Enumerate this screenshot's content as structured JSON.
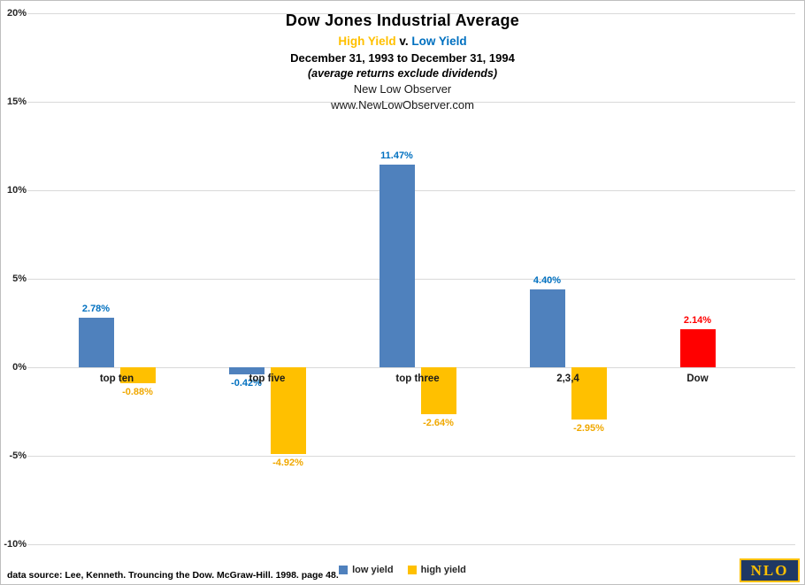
{
  "header": {
    "title": "Dow Jones Industrial Average",
    "subtitle_high": "High Yield",
    "subtitle_vs": " v. ",
    "subtitle_low": "Low Yield",
    "date_range": "December 31, 1993 to December 31, 1994",
    "note": "(average returns exclude dividends)",
    "org": "New Low Observer",
    "url": "www.NewLowObserver.com"
  },
  "chart_data": {
    "type": "bar",
    "title": "Dow Jones Industrial Average — High Yield v. Low Yield",
    "categories": [
      "top ten",
      "top five",
      "top three",
      "2,3,4",
      "Dow"
    ],
    "series": [
      {
        "name": "low yield",
        "color": "#4f81bd",
        "label_color": "#0070c0",
        "in_legend": true,
        "values": [
          2.78,
          -0.42,
          11.47,
          4.4,
          null
        ]
      },
      {
        "name": "high yield",
        "color": "#ffc000",
        "label_color": "#f0a800",
        "in_legend": true,
        "values": [
          -0.88,
          -4.92,
          -2.64,
          -2.95,
          null
        ]
      },
      {
        "name": "Dow",
        "color": "#ff0000",
        "label_color": "#ff0000",
        "in_legend": false,
        "values": [
          null,
          null,
          null,
          null,
          2.14
        ]
      }
    ],
    "xlabel": "",
    "ylabel": "",
    "ylim": [
      -10,
      20
    ],
    "ytick_step": 5,
    "ytick_format": "percent",
    "grid": true,
    "legend_position": "bottom"
  },
  "colors": {
    "low_yield": "#4f81bd",
    "high_yield": "#ffc000",
    "dow": "#ff0000",
    "low_yield_text": "#0070c0",
    "high_yield_text": "#ffc000",
    "gridline": "#d9d9d9",
    "nlo_bg": "#1f3864",
    "nlo_border": "#ffc000",
    "nlo_text": "#ffc000"
  },
  "footer": {
    "source": "data source: Lee, Kenneth. Trouncing the Dow. McGraw-Hill. 1998. page 48.",
    "logo_text": "NLO"
  }
}
